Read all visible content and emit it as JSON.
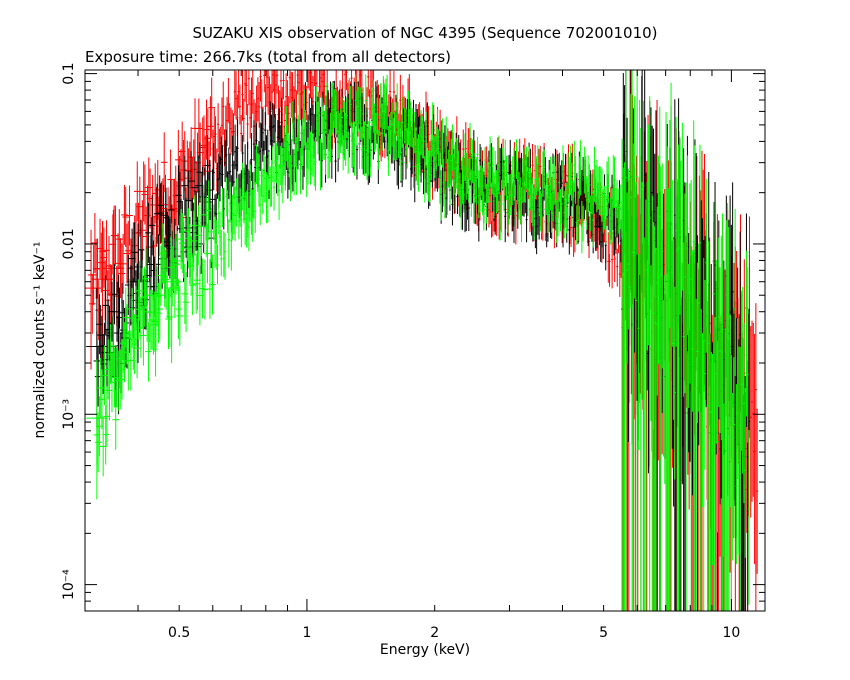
{
  "chart_data": {
    "type": "scatter",
    "title": "SUZAKU XIS observation of NGC 4395 (Sequence 702001010)",
    "subtitle": "Exposure time: 266.7ks (total from all detectors)",
    "xlabel": "Energy (keV)",
    "ylabel": "normalized counts s⁻¹ keV⁻¹",
    "x_scale": "log",
    "y_scale": "log",
    "xlim": [
      0.3,
      12.0
    ],
    "ylim": [
      7e-05,
      0.105
    ],
    "grid": false,
    "legend": "none",
    "x_ticks": [
      {
        "value": 0.5,
        "label": "0.5"
      },
      {
        "value": 1,
        "label": "1"
      },
      {
        "value": 2,
        "label": "2"
      },
      {
        "value": 5,
        "label": "5"
      },
      {
        "value": 10,
        "label": "10"
      }
    ],
    "y_ticks": [
      {
        "value": 0.1,
        "label": "0.1"
      },
      {
        "value": 0.01,
        "label": "0.01"
      },
      {
        "value": 0.001,
        "label": "10⁻³"
      },
      {
        "value": 0.0001,
        "label": "10⁻⁴"
      }
    ],
    "series": [
      {
        "color": "#ff0000",
        "points": [
          [
            0.31,
            0.0055
          ],
          [
            0.33,
            0.0062
          ],
          [
            0.35,
            0.0072
          ],
          [
            0.37,
            0.009
          ],
          [
            0.39,
            0.011
          ],
          [
            0.41,
            0.013
          ],
          [
            0.43,
            0.015
          ],
          [
            0.45,
            0.017
          ],
          [
            0.47,
            0.019
          ],
          [
            0.49,
            0.021
          ],
          [
            0.52,
            0.025
          ],
          [
            0.55,
            0.029
          ],
          [
            0.58,
            0.033
          ],
          [
            0.61,
            0.038
          ],
          [
            0.64,
            0.044
          ],
          [
            0.67,
            0.052
          ],
          [
            0.7,
            0.06
          ],
          [
            0.74,
            0.065
          ],
          [
            0.78,
            0.068
          ],
          [
            0.82,
            0.07
          ],
          [
            0.86,
            0.072
          ],
          [
            0.9,
            0.075
          ],
          [
            0.95,
            0.077
          ],
          [
            1.0,
            0.078
          ],
          [
            1.06,
            0.076
          ],
          [
            1.12,
            0.074
          ],
          [
            1.18,
            0.072
          ],
          [
            1.25,
            0.07
          ],
          [
            1.32,
            0.068
          ],
          [
            1.4,
            0.066
          ],
          [
            1.48,
            0.062
          ],
          [
            1.56,
            0.058
          ],
          [
            1.65,
            0.054
          ],
          [
            1.75,
            0.048
          ],
          [
            1.85,
            0.04
          ],
          [
            1.95,
            0.034
          ],
          [
            2.05,
            0.03
          ],
          [
            2.2,
            0.027
          ],
          [
            2.35,
            0.025
          ],
          [
            2.5,
            0.024
          ],
          [
            2.7,
            0.023
          ],
          [
            2.9,
            0.022
          ],
          [
            3.1,
            0.0215
          ],
          [
            3.3,
            0.021
          ],
          [
            3.6,
            0.02
          ],
          [
            3.9,
            0.019
          ],
          [
            4.2,
            0.018
          ],
          [
            4.5,
            0.016
          ],
          [
            4.8,
            0.014
          ],
          [
            5.1,
            0.012
          ],
          [
            5.4,
            0.01
          ],
          [
            5.7,
            0.0085
          ],
          [
            6.0,
            0.007
          ],
          [
            6.4,
            0.006
          ],
          [
            6.8,
            0.005
          ],
          [
            7.2,
            0.0042
          ],
          [
            7.6,
            0.0035
          ],
          [
            8.0,
            0.003
          ],
          [
            8.5,
            0.0025
          ],
          [
            9.0,
            0.002
          ],
          [
            9.5,
            0.0016
          ],
          [
            10.0,
            0.0013
          ],
          [
            10.5,
            0.0011
          ],
          [
            11.0,
            0.0009
          ],
          [
            11.5,
            0.0008
          ]
        ]
      },
      {
        "color": "#000000",
        "points": [
          [
            0.32,
            0.0025
          ],
          [
            0.36,
            0.003
          ],
          [
            0.4,
            0.006
          ],
          [
            0.44,
            0.009
          ],
          [
            0.48,
            0.012
          ],
          [
            0.53,
            0.015
          ],
          [
            0.58,
            0.018
          ],
          [
            0.64,
            0.022
          ],
          [
            0.7,
            0.026
          ],
          [
            0.76,
            0.03
          ],
          [
            0.83,
            0.034
          ],
          [
            0.9,
            0.038
          ],
          [
            0.98,
            0.042
          ],
          [
            1.06,
            0.044
          ],
          [
            1.15,
            0.045
          ],
          [
            1.25,
            0.046
          ],
          [
            1.35,
            0.047
          ],
          [
            1.45,
            0.046
          ],
          [
            1.56,
            0.044
          ],
          [
            1.68,
            0.041
          ],
          [
            1.8,
            0.037
          ],
          [
            1.95,
            0.032
          ],
          [
            2.1,
            0.027
          ],
          [
            2.3,
            0.024
          ],
          [
            2.5,
            0.022
          ],
          [
            2.75,
            0.021
          ],
          [
            3.0,
            0.02
          ],
          [
            3.3,
            0.0195
          ],
          [
            3.6,
            0.0185
          ],
          [
            4.0,
            0.0175
          ],
          [
            4.4,
            0.0165
          ],
          [
            4.8,
            0.015
          ],
          [
            5.2,
            0.013
          ],
          [
            5.6,
            0.011
          ],
          [
            6.0,
            0.009
          ],
          [
            6.5,
            0.007
          ],
          [
            7.0,
            0.0055
          ],
          [
            7.5,
            0.0045
          ],
          [
            8.0,
            0.0038
          ],
          [
            8.6,
            0.003
          ],
          [
            9.2,
            0.0024
          ],
          [
            9.8,
            0.0019
          ],
          [
            10.4,
            0.0015
          ],
          [
            11.0,
            0.0012
          ]
        ]
      },
      {
        "color": "#00ff00",
        "points": [
          [
            0.32,
            0.00095
          ],
          [
            0.44,
            0.005
          ],
          [
            0.48,
            0.006
          ],
          [
            0.52,
            0.007
          ],
          [
            0.56,
            0.0085
          ],
          [
            0.6,
            0.01
          ],
          [
            0.65,
            0.013
          ],
          [
            0.7,
            0.016
          ],
          [
            0.75,
            0.02
          ],
          [
            0.8,
            0.025
          ],
          [
            0.86,
            0.03
          ],
          [
            0.92,
            0.035
          ],
          [
            0.98,
            0.04
          ],
          [
            1.05,
            0.043
          ],
          [
            1.12,
            0.045
          ],
          [
            1.2,
            0.047
          ],
          [
            1.28,
            0.048
          ],
          [
            1.37,
            0.049
          ],
          [
            1.46,
            0.048
          ],
          [
            1.56,
            0.046
          ],
          [
            1.67,
            0.043
          ],
          [
            1.8,
            0.038
          ],
          [
            1.95,
            0.032
          ],
          [
            2.1,
            0.028
          ],
          [
            2.3,
            0.025
          ],
          [
            2.5,
            0.0235
          ],
          [
            2.75,
            0.0225
          ],
          [
            3.0,
            0.0215
          ],
          [
            3.3,
            0.021
          ],
          [
            3.6,
            0.0205
          ],
          [
            4.0,
            0.02
          ],
          [
            4.4,
            0.0195
          ],
          [
            4.8,
            0.0185
          ],
          [
            5.2,
            0.017
          ],
          [
            5.6,
            0.015
          ],
          [
            6.0,
            0.011
          ],
          [
            6.4,
            0.008
          ],
          [
            6.8,
            0.006
          ],
          [
            7.2,
            0.005
          ],
          [
            7.6,
            0.0042
          ],
          [
            8.0,
            0.0035
          ],
          [
            8.5,
            0.0028
          ],
          [
            9.0,
            0.0022
          ],
          [
            9.5,
            0.0018
          ],
          [
            10.0,
            0.0014
          ],
          [
            10.5,
            0.0011
          ],
          [
            11.0,
            0.0009
          ]
        ]
      }
    ]
  }
}
